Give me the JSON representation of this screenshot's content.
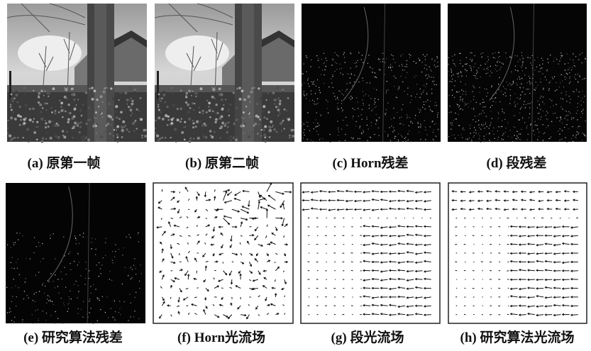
{
  "panels": [
    {
      "caption": "(a) 原第一帧"
    },
    {
      "caption": "(b) 原第二帧"
    },
    {
      "caption": "(c) Horn残差"
    },
    {
      "caption": "(d) 段残差"
    },
    {
      "caption": "(e) 研究算法残差"
    },
    {
      "caption": "(f) Horn光流场"
    },
    {
      "caption": "(g) 段光流场"
    },
    {
      "caption": "(h) 研究算法光流场"
    }
  ]
}
